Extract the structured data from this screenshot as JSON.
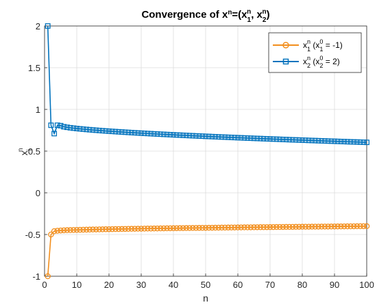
{
  "chart_data": {
    "type": "line",
    "title": "Convergence of x^n=(x_1^n, x_2^n)",
    "xlabel": "n",
    "ylabel": "x_i^n",
    "xlim": [
      0,
      100
    ],
    "ylim": [
      -1,
      2
    ],
    "xticks": [
      0,
      10,
      20,
      30,
      40,
      50,
      60,
      70,
      80,
      90,
      100
    ],
    "yticks": [
      -1,
      -0.5,
      0,
      0.5,
      1,
      1.5,
      2
    ],
    "ytick_labels": [
      "-1",
      "-0.5",
      "0",
      "0.5",
      "1",
      "1.5",
      "2"
    ],
    "grid": true,
    "legend_position": "top-right",
    "series": [
      {
        "name": "x_1^n (x_1^0 = -1)",
        "color": "#EDB120",
        "line_color": "#F28E1C",
        "marker": "circle",
        "x_start": 1,
        "x_end": 100,
        "values_head": [
          -1.0,
          -0.5,
          -0.46
        ],
        "values_tail_start": -0.455,
        "values_tail_end": -0.4
      },
      {
        "name": "x_2^n (x_2^0 = 2)",
        "color": "#0072BD",
        "marker": "square",
        "x_start": 1,
        "x_end": 100,
        "values_head": [
          2.0,
          0.81,
          0.71,
          0.81
        ],
        "values_tail_start": 0.805,
        "values_tail_end": 0.605
      }
    ]
  }
}
